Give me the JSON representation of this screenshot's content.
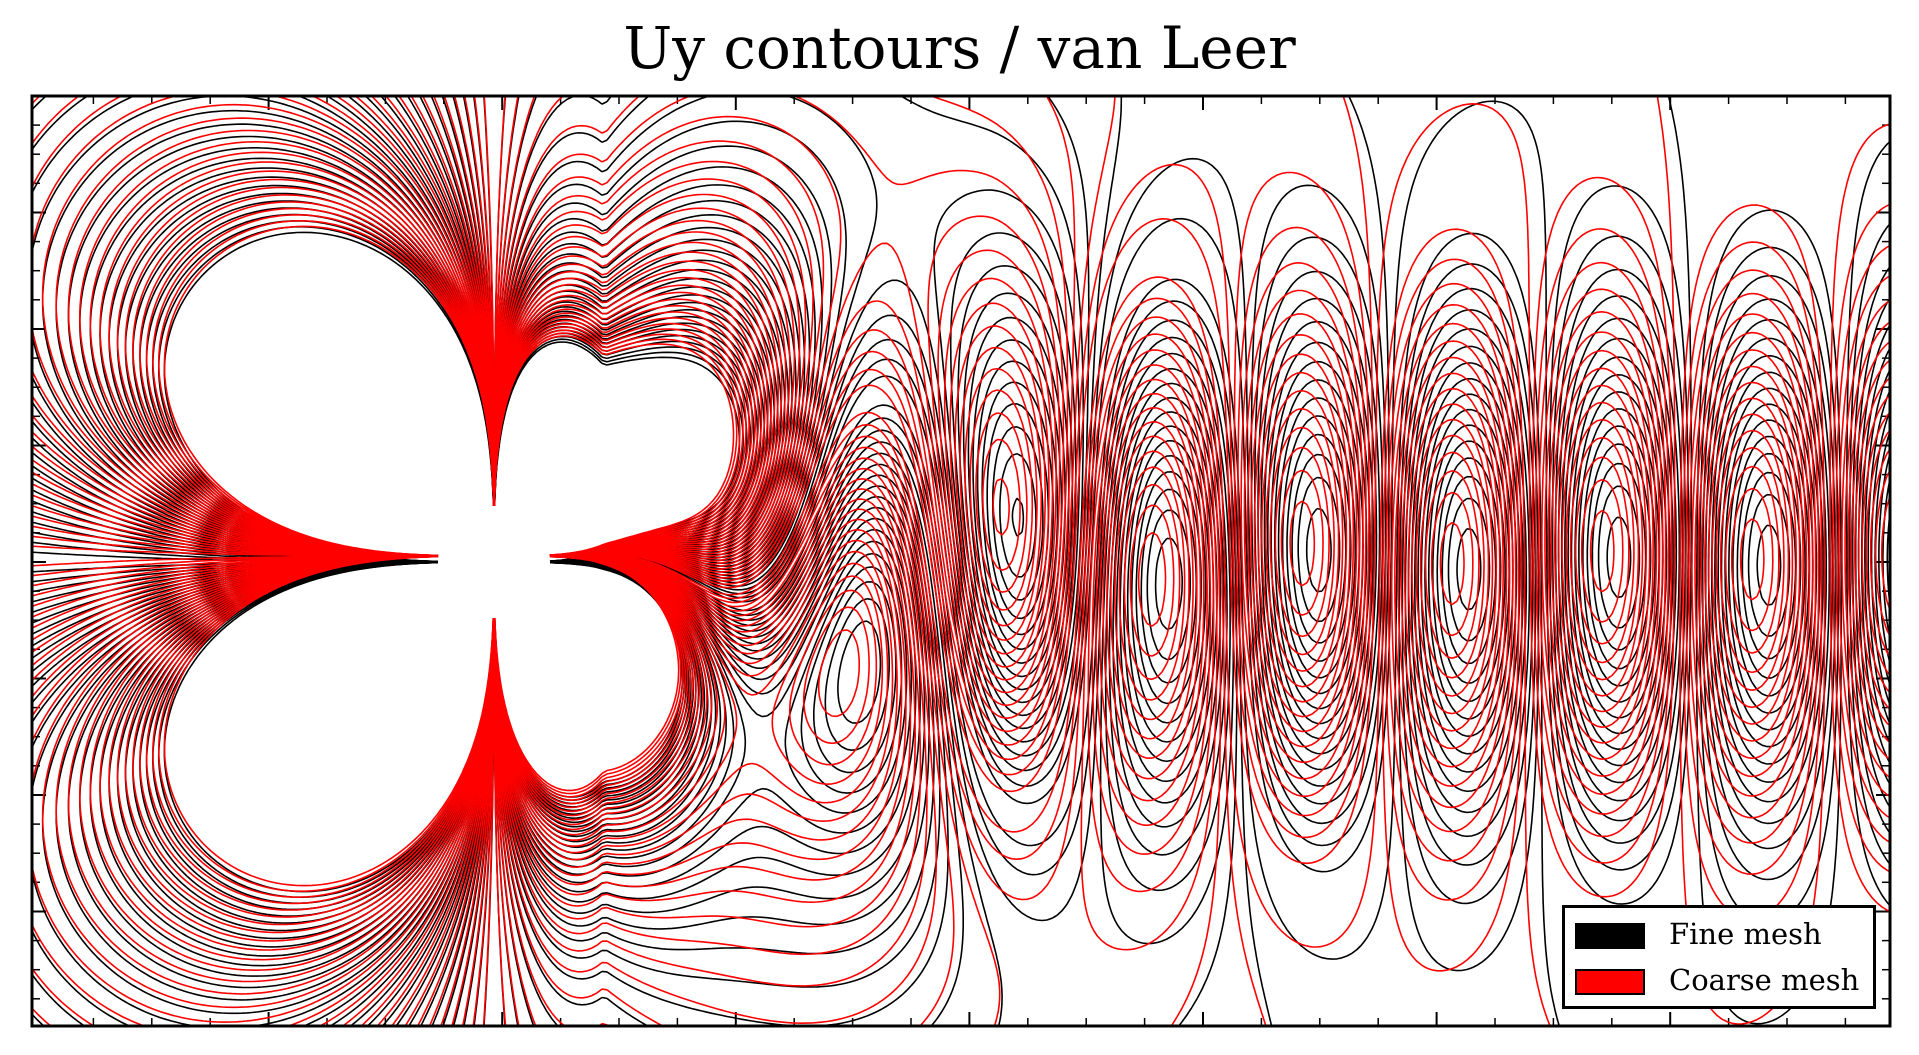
{
  "chart_data": {
    "type": "contour",
    "title": "Uy contours / van Leer",
    "xlabel": "",
    "ylabel": "",
    "x_tick_labels": [],
    "y_tick_labels": [],
    "grid": false,
    "legend_position": "bottom-right",
    "obstacle": "circular cylinder",
    "series": [
      {
        "name": "Fine mesh",
        "color": "#000000"
      },
      {
        "name": "Coarse mesh",
        "color": "#ff0000"
      }
    ]
  }
}
